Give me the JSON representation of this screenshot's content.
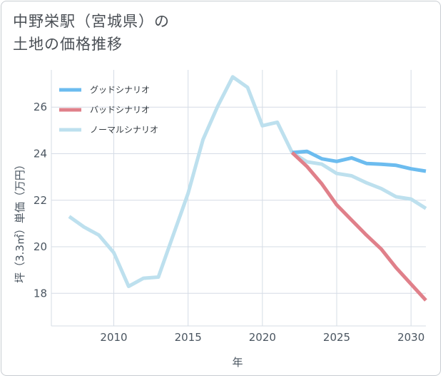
{
  "title_line1": "中野栄駅（宮城県）の",
  "title_line2": "土地の価格推移",
  "colors": {
    "good": "#6cbcef",
    "bad": "#e0808a",
    "normal": "#bde0ee",
    "grid": "#d5dce6",
    "axis_text": "#4a5560"
  },
  "chart_data": {
    "type": "line",
    "title": "中野栄駅（宮城県）の土地の価格推移",
    "xlabel": "年",
    "ylabel": "坪（3.3㎡）単価（万円）",
    "xlim": [
      2005.8,
      2031
    ],
    "ylim": [
      16.6,
      27.6
    ],
    "x_ticks": [
      2010,
      2015,
      2020,
      2025,
      2030
    ],
    "y_ticks": [
      18,
      20,
      22,
      24,
      26
    ],
    "series": [
      {
        "name": "グッドシナリオ",
        "color": "#6cbcef",
        "x": [
          2022,
          2023,
          2024,
          2025,
          2026,
          2027,
          2028,
          2029,
          2030,
          2031
        ],
        "y": [
          24.05,
          24.1,
          23.78,
          23.67,
          23.82,
          23.58,
          23.55,
          23.5,
          23.35,
          23.25
        ]
      },
      {
        "name": "バッドシナリオ",
        "color": "#e0808a",
        "x": [
          2022,
          2023,
          2024,
          2025,
          2026,
          2027,
          2028,
          2029,
          2030,
          2031
        ],
        "y": [
          24.05,
          23.45,
          22.7,
          21.8,
          21.15,
          20.5,
          19.9,
          19.1,
          18.4,
          17.7
        ]
      },
      {
        "name": "ノーマルシナリオ",
        "color": "#bde0ee",
        "x": [
          2007,
          2008,
          2009,
          2010,
          2011,
          2012,
          2013,
          2014,
          2015,
          2016,
          2017,
          2018,
          2019,
          2020,
          2021,
          2022,
          2023,
          2024,
          2025,
          2026,
          2027,
          2028,
          2029,
          2030,
          2031
        ],
        "y": [
          21.3,
          20.85,
          20.5,
          19.75,
          18.3,
          18.65,
          18.7,
          20.5,
          22.3,
          24.6,
          26.05,
          27.3,
          26.85,
          25.2,
          25.35,
          24.05,
          23.65,
          23.55,
          23.15,
          23.05,
          22.75,
          22.5,
          22.15,
          22.05,
          21.65
        ]
      }
    ],
    "legend_position": "top-left"
  }
}
